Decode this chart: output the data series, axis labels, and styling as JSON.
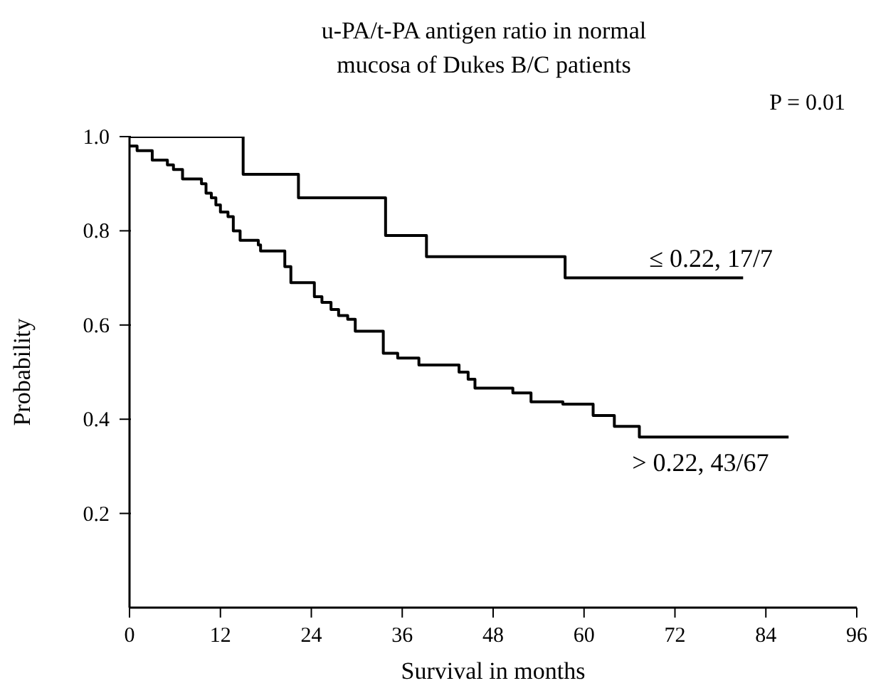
{
  "chart_data": {
    "type": "step",
    "title": "u-PA/t-PA antigen ratio in normal\nmucosa of Dukes B/C patients",
    "xlabel": "Survival in months",
    "ylabel": "Probability",
    "annotations": [
      "P = 0.01"
    ],
    "xlim": [
      0,
      96
    ],
    "xticks": [
      0,
      12,
      24,
      36,
      48,
      60,
      72,
      84,
      96
    ],
    "ylim": [
      0,
      1
    ],
    "yticks": [
      0.2,
      0.4,
      0.6,
      0.8,
      {
        "value": 1,
        "label": "1.0"
      }
    ],
    "marker": "none",
    "line_style": "solid",
    "series": [
      {
        "name": "≤ 0.22, 17/7",
        "color": "#000000",
        "x": [
          0,
          15,
          22.3,
          33.8,
          39.2,
          57.5,
          81
        ],
        "values": [
          1,
          0.92,
          0.87,
          0.79,
          0.745,
          0.7,
          0.7
        ]
      },
      {
        "name": "> 0.22, 43/67",
        "color": "#000000",
        "x": [
          0,
          1,
          3,
          5,
          5.8,
          7,
          9.5,
          10.1,
          10.8,
          11.4,
          12,
          13,
          13.7,
          14.6,
          17,
          17.3,
          20.5,
          21.3,
          24.4,
          25.4,
          26.6,
          27.6,
          28.8,
          29.8,
          33.5,
          35.4,
          38.2,
          43.5,
          44.7,
          45.6,
          50.6,
          53,
          57.2,
          61.2,
          64,
          67.3,
          87
        ],
        "values": [
          0.98,
          0.97,
          0.95,
          0.94,
          0.93,
          0.91,
          0.9,
          0.88,
          0.87,
          0.855,
          0.84,
          0.83,
          0.8,
          0.78,
          0.77,
          0.757,
          0.724,
          0.69,
          0.66,
          0.648,
          0.633,
          0.62,
          0.612,
          0.587,
          0.54,
          0.53,
          0.515,
          0.5,
          0.485,
          0.466,
          0.456,
          0.437,
          0.432,
          0.408,
          0.385,
          0.362,
          0.362
        ]
      }
    ]
  }
}
